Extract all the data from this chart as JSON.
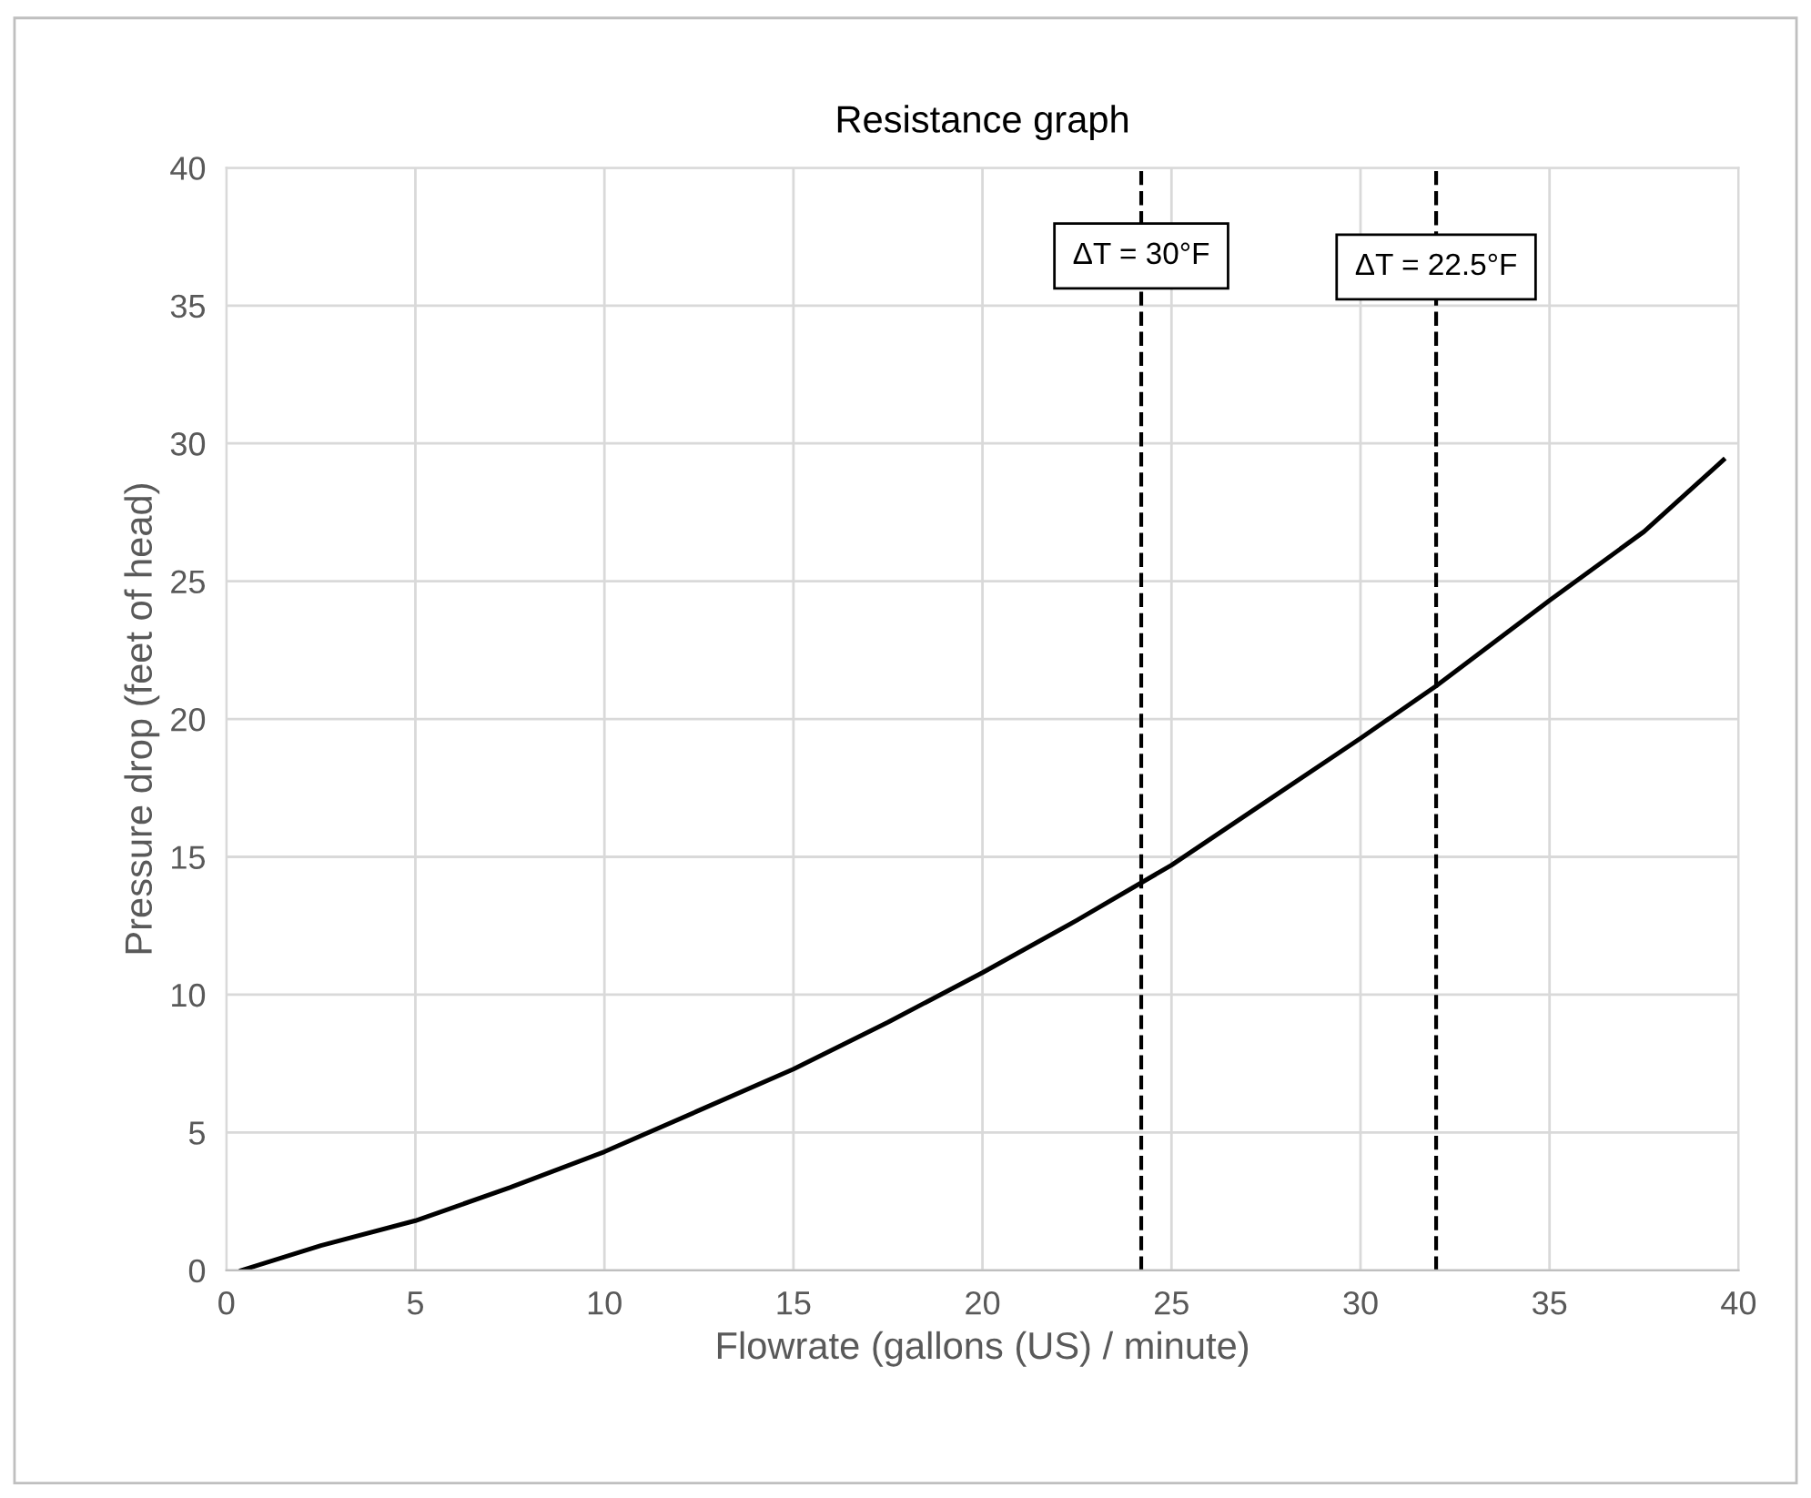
{
  "chart_data": {
    "type": "line",
    "title": "Resistance graph",
    "xlabel": "Flowrate (gallons (US) / minute)",
    "ylabel": "Pressure drop (feet of head)",
    "series": [
      {
        "color": "#000000",
        "x": [
          0.4,
          2.5,
          5,
          7.5,
          10,
          12.5,
          15,
          17.5,
          20,
          22.5,
          25,
          27.5,
          30,
          32,
          35,
          37.5,
          39.6
        ],
        "values": [
          0,
          0.9,
          1.8,
          3.0,
          4.3,
          5.8,
          7.3,
          9.0,
          10.8,
          12.7,
          14.7,
          17.0,
          19.3,
          21.2,
          24.3,
          26.8,
          29.4
        ]
      }
    ],
    "xlim": [
      0,
      40
    ],
    "xticks": [
      0,
      5,
      10,
      15,
      20,
      25,
      30,
      35,
      40
    ],
    "ylim": [
      0,
      40
    ],
    "yticks": [
      0,
      5,
      10,
      15,
      20,
      25,
      30,
      35,
      40
    ],
    "grid": true,
    "marker": "none",
    "line_style": "solid",
    "ref_lines": [
      {
        "axis": "x",
        "value": 24.2,
        "color": "#000000",
        "line_style": "dashed"
      },
      {
        "axis": "x",
        "value": 32,
        "color": "#000000",
        "line_style": "dashed"
      }
    ],
    "annotations": [
      {
        "text": "ΔT = 30°F",
        "x": 24.2,
        "y": 36.8
      },
      {
        "text": "ΔT = 22.5°F",
        "x": 32,
        "y": 36.4
      }
    ]
  }
}
